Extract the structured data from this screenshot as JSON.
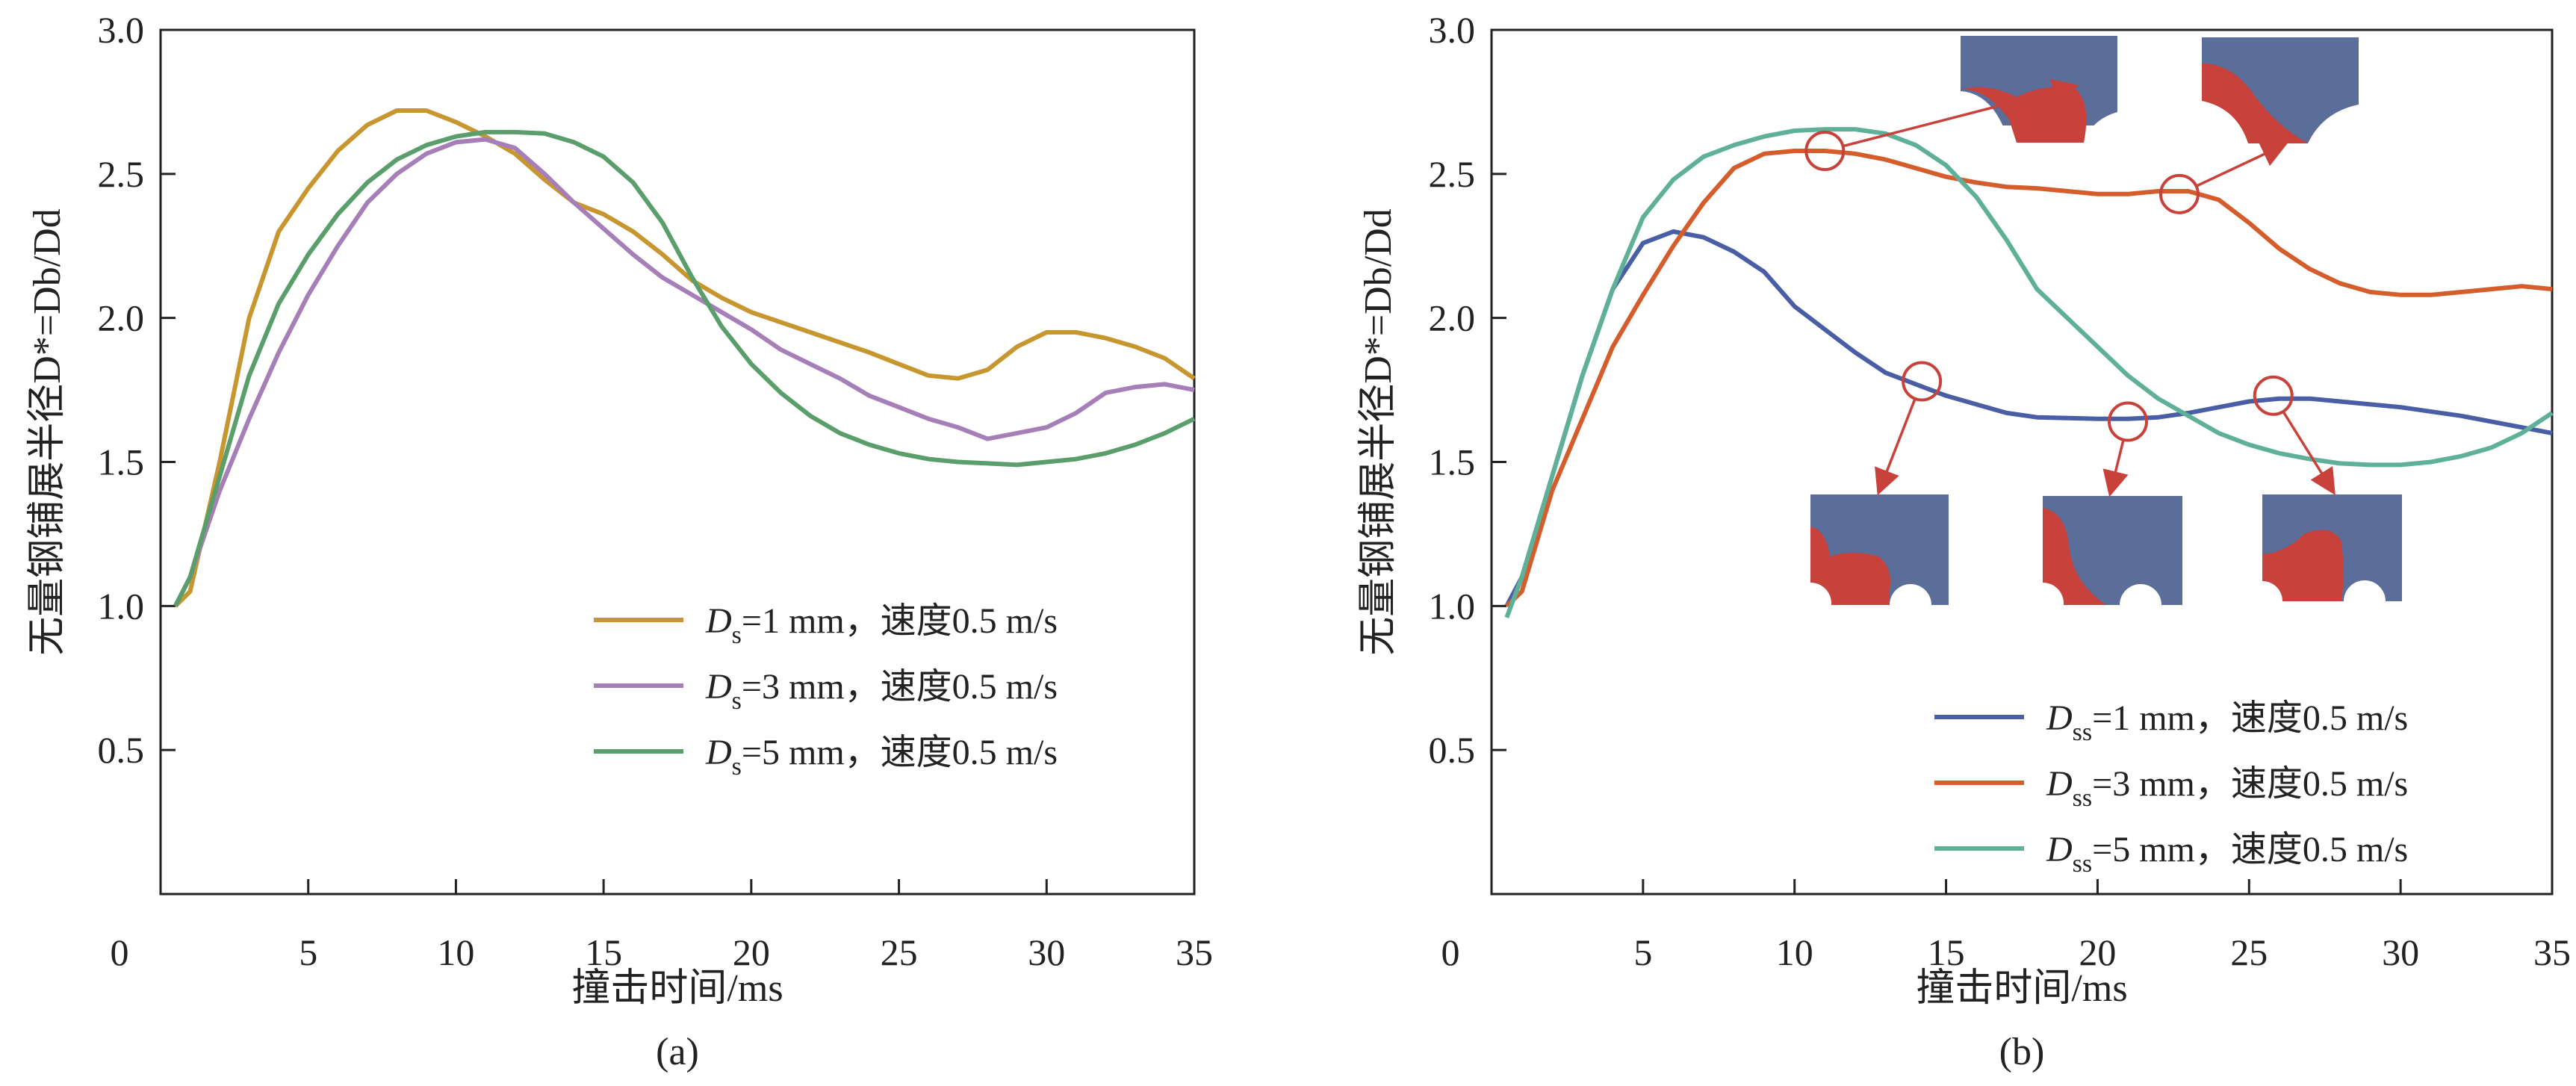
{
  "chart_data": [
    {
      "type": "line",
      "caption": "(a)",
      "xlabel": "撞击时间/ms",
      "ylabel": "无量钢铺展半径D*=Db/Dd",
      "xlim": [
        0,
        35
      ],
      "ylim": [
        0,
        3.0
      ],
      "xticks": [
        "0",
        "5",
        "10",
        "15",
        "20",
        "25",
        "30",
        "35"
      ],
      "yticks": [
        "0.5",
        "1.0",
        "1.5",
        "2.0",
        "2.5",
        "3.0"
      ],
      "grid": false,
      "legend_position": "lower-right",
      "series": [
        {
          "name": "Ds=1 mm，速度0.5 m/s",
          "sub": "s",
          "pre": "D",
          "post": "=1 mm，速度0.5 m/s",
          "color": "#c8962f",
          "x": [
            0.5,
            1,
            2,
            3,
            4,
            5,
            6,
            7,
            8,
            9,
            10,
            11,
            12,
            13,
            14,
            15,
            16,
            17,
            18,
            19,
            20,
            22,
            24,
            25,
            26,
            27,
            28,
            29,
            30,
            31,
            32,
            33,
            34,
            35
          ],
          "y": [
            1.0,
            1.05,
            1.5,
            2.0,
            2.3,
            2.45,
            2.58,
            2.67,
            2.72,
            2.72,
            2.68,
            2.63,
            2.57,
            2.48,
            2.4,
            2.36,
            2.3,
            2.22,
            2.13,
            2.07,
            2.02,
            1.95,
            1.88,
            1.84,
            1.8,
            1.79,
            1.82,
            1.9,
            1.95,
            1.95,
            1.93,
            1.9,
            1.86,
            1.79
          ]
        },
        {
          "name": "Ds=3 mm，速度0.5 m/s",
          "sub": "s",
          "pre": "D",
          "post": "=3 mm，速度0.5 m/s",
          "color": "#a67fb9",
          "x": [
            0.5,
            1,
            2,
            3,
            4,
            5,
            6,
            7,
            8,
            9,
            10,
            11,
            12,
            13,
            14,
            15,
            16,
            17,
            18,
            19,
            20,
            21,
            22,
            23,
            24,
            25,
            26,
            27,
            28,
            29,
            30,
            31,
            32,
            33,
            34,
            35
          ],
          "y": [
            1.0,
            1.1,
            1.4,
            1.65,
            1.88,
            2.08,
            2.25,
            2.4,
            2.5,
            2.57,
            2.61,
            2.62,
            2.59,
            2.5,
            2.4,
            2.31,
            2.22,
            2.14,
            2.08,
            2.02,
            1.96,
            1.89,
            1.84,
            1.79,
            1.73,
            1.69,
            1.65,
            1.62,
            1.58,
            1.6,
            1.62,
            1.67,
            1.74,
            1.76,
            1.77,
            1.75
          ]
        },
        {
          "name": "Ds=5 mm，速度0.5 m/s",
          "sub": "s",
          "pre": "D",
          "post": "=5 mm，速度0.5 m/s",
          "color": "#5a9e6b",
          "x": [
            0.5,
            1,
            2,
            3,
            4,
            5,
            6,
            7,
            8,
            9,
            10,
            11,
            12,
            13,
            14,
            15,
            16,
            17,
            18,
            19,
            20,
            21,
            22,
            23,
            24,
            25,
            26,
            27,
            28,
            29,
            30,
            31,
            32,
            33,
            34,
            35
          ],
          "y": [
            1.0,
            1.1,
            1.45,
            1.8,
            2.05,
            2.22,
            2.36,
            2.47,
            2.55,
            2.6,
            2.63,
            2.645,
            2.645,
            2.64,
            2.61,
            2.56,
            2.47,
            2.33,
            2.14,
            1.97,
            1.84,
            1.74,
            1.66,
            1.6,
            1.56,
            1.53,
            1.51,
            1.5,
            1.495,
            1.49,
            1.5,
            1.51,
            1.53,
            1.56,
            1.6,
            1.65
          ]
        }
      ]
    },
    {
      "type": "line",
      "caption": "(b)",
      "xlabel": "撞击时间/ms",
      "ylabel": "无量钢铺展半径D*=Db/Dd",
      "xlim": [
        0,
        35
      ],
      "ylim": [
        0,
        3.0
      ],
      "xticks": [
        "0",
        "5",
        "10",
        "15",
        "20",
        "25",
        "30",
        "35"
      ],
      "yticks": [
        "0.5",
        "1.0",
        "1.5",
        "2.0",
        "2.5",
        "3.0"
      ],
      "grid": false,
      "legend_position": "lower-right",
      "series": [
        {
          "name": "Dss=1 mm，速度0.5 m/s",
          "sub": "ss",
          "pre": "D",
          "post": "=1 mm，速度0.5 m/s",
          "color": "#4a5ea6",
          "x": [
            0.5,
            1,
            2,
            3,
            4,
            5,
            6,
            7,
            8,
            9,
            10,
            11,
            12,
            13,
            14,
            15,
            16,
            17,
            18,
            20,
            21,
            22,
            23,
            24,
            25,
            26,
            27,
            28,
            30,
            32,
            34,
            35
          ],
          "y": [
            1.0,
            1.1,
            1.45,
            1.8,
            2.1,
            2.26,
            2.3,
            2.28,
            2.23,
            2.16,
            2.04,
            1.96,
            1.88,
            1.81,
            1.77,
            1.73,
            1.7,
            1.67,
            1.655,
            1.65,
            1.65,
            1.655,
            1.67,
            1.69,
            1.71,
            1.72,
            1.72,
            1.71,
            1.69,
            1.66,
            1.62,
            1.6
          ]
        },
        {
          "name": "Dss=3 mm，速度0.5 m/s",
          "sub": "ss",
          "pre": "D",
          "post": "=3 mm，速度0.5 m/s",
          "color": "#d45d2b",
          "x": [
            0.5,
            1,
            2,
            3,
            4,
            5,
            6,
            7,
            8,
            9,
            10,
            11,
            12,
            13,
            14,
            15,
            16,
            17,
            18,
            20,
            21,
            22,
            23,
            24,
            25,
            26,
            27,
            28,
            29,
            30,
            31,
            32,
            33,
            34,
            35
          ],
          "y": [
            1.0,
            1.05,
            1.4,
            1.65,
            1.9,
            2.08,
            2.25,
            2.4,
            2.52,
            2.57,
            2.58,
            2.58,
            2.57,
            2.55,
            2.52,
            2.49,
            2.47,
            2.455,
            2.45,
            2.43,
            2.43,
            2.44,
            2.44,
            2.41,
            2.33,
            2.24,
            2.17,
            2.12,
            2.09,
            2.08,
            2.08,
            2.09,
            2.1,
            2.11,
            2.1
          ]
        },
        {
          "name": "Dss=5 mm，速度0.5 m/s",
          "sub": "ss",
          "pre": "D",
          "post": "=5 mm，速度0.5 m/s",
          "color": "#5eb198",
          "x": [
            0.5,
            1,
            2,
            3,
            4,
            5,
            6,
            7,
            8,
            9,
            10,
            11,
            12,
            13,
            14,
            15,
            16,
            17,
            18,
            19,
            20,
            21,
            22,
            23,
            24,
            25,
            26,
            27,
            28,
            29,
            30,
            31,
            32,
            33,
            34,
            35
          ],
          "y": [
            0.96,
            1.1,
            1.45,
            1.8,
            2.1,
            2.35,
            2.48,
            2.56,
            2.6,
            2.63,
            2.65,
            2.655,
            2.655,
            2.64,
            2.6,
            2.53,
            2.42,
            2.27,
            2.1,
            2.0,
            1.9,
            1.8,
            1.72,
            1.66,
            1.6,
            1.56,
            1.53,
            1.51,
            1.495,
            1.49,
            1.49,
            1.5,
            1.52,
            1.55,
            1.6,
            1.67
          ]
        }
      ],
      "annotations": {
        "marker": "circle",
        "color": "#c8413a",
        "points": [
          [
            11,
            2.58
          ],
          [
            22.7,
            2.43
          ],
          [
            14.2,
            1.78
          ],
          [
            21,
            1.64
          ],
          [
            25.8,
            1.73
          ]
        ],
        "inset_colors": {
          "solid": "#5b6d99",
          "liquid": "#c8413a"
        }
      }
    }
  ]
}
